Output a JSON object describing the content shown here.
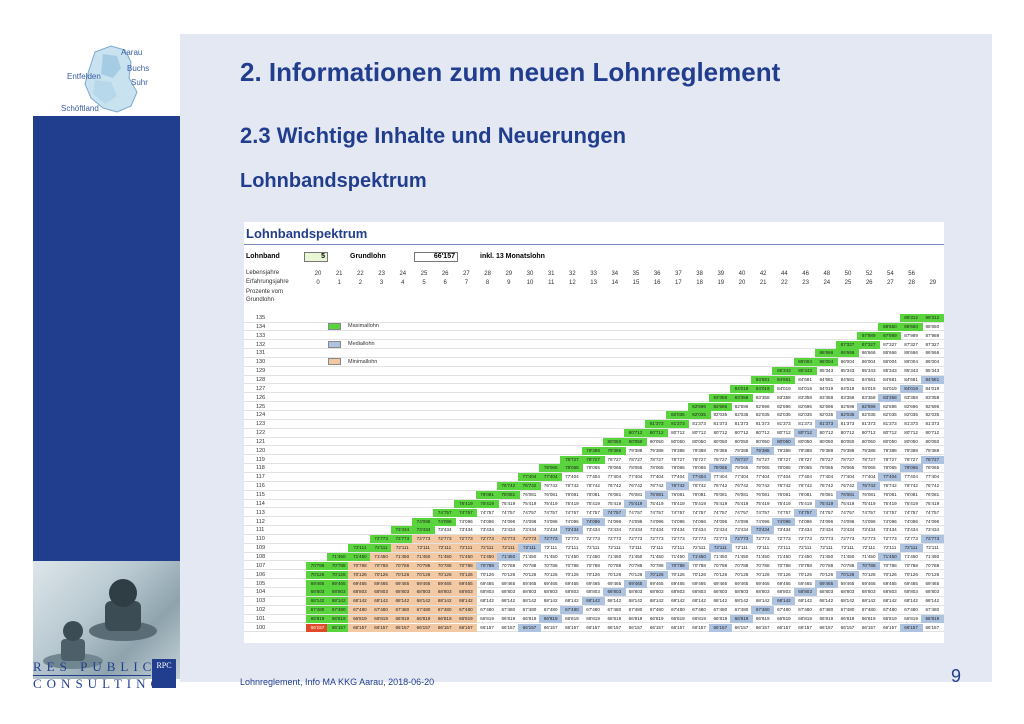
{
  "header": {
    "title": "2. Informationen zum neuen Lohnreglement",
    "subtitle": "2.3 Wichtige Inhalte und Neuerungen",
    "section": "Lohnbandspektrum"
  },
  "map": {
    "labels": [
      "Aarau",
      "Buchs",
      "Entfelden",
      "Suhr",
      "Schöftland"
    ]
  },
  "table": {
    "title": "Lohnbandspektrum",
    "lohnband_label": "Lohnband",
    "lohnband_value": "5",
    "grundlohn_label": "Grundlohn",
    "grundlohn_value": "66'157",
    "note": "inkl. 13 Monatslohn",
    "row_age_label": "Lebensjahre",
    "row_exp_label": "Erfahrungsjahre",
    "row_pct_label": "Prozente vom Grundlohn",
    "ages": [
      "20",
      "21",
      "22",
      "23",
      "24",
      "25",
      "26",
      "27",
      "28",
      "29",
      "30",
      "31",
      "32",
      "33",
      "34",
      "35",
      "36",
      "37",
      "38",
      "39",
      "40",
      "42",
      "44",
      "46",
      "48",
      "50",
      "52",
      "54",
      "56"
    ],
    "experience": [
      "0",
      "1",
      "2",
      "3",
      "4",
      "5",
      "6",
      "7",
      "8",
      "9",
      "10",
      "11",
      "12",
      "13",
      "14",
      "15",
      "16",
      "17",
      "18",
      "19",
      "20",
      "21",
      "22",
      "23",
      "24",
      "25",
      "26",
      "27",
      "28",
      "29",
      "30"
    ],
    "bands": [
      "135",
      "134",
      "133",
      "132",
      "131",
      "130",
      "129",
      "128",
      "127",
      "126",
      "125",
      "124",
      "123",
      "122",
      "121",
      "120",
      "119",
      "118",
      "117",
      "116",
      "115",
      "114",
      "113",
      "112",
      "111",
      "110",
      "109",
      "108",
      "107",
      "106",
      "105",
      "104",
      "103",
      "102",
      "101",
      "100"
    ],
    "band_values": [
      "89'312",
      "88'650",
      "87'989",
      "87'327",
      "86'666",
      "86'004",
      "85'343",
      "84'681",
      "84'019",
      "83'358",
      "82'696",
      "82'035",
      "81'373",
      "80'712",
      "80'050",
      "79'388",
      "78'727",
      "78'065",
      "77'404",
      "76'742",
      "76'081",
      "75'419",
      "74'757",
      "74'096",
      "73'434",
      "72'773",
      "72'111",
      "71'450",
      "70'788",
      "70'126",
      "69'465",
      "68'803",
      "68'142",
      "67'480",
      "66'819",
      "66'157"
    ],
    "legend": [
      {
        "label": "Maximallohn",
        "color": "#5ad43c"
      },
      {
        "label": "Mediallohn",
        "color": "#aec3e0"
      },
      {
        "label": "Minimallohn",
        "color": "#f3c9a4"
      }
    ],
    "colors": {
      "max": "#5ad43c",
      "median": "#aec3e0",
      "min": "#f3c9a4",
      "start": "#e04a2a"
    }
  },
  "footer": {
    "logo_line1": "RES PUBLICA",
    "logo_line2": "CONSULTING",
    "logo_badge": "RPC",
    "text": "Lohnreglement, Info MA KKG Aarau, 2018-06-20",
    "page_number": "9"
  }
}
